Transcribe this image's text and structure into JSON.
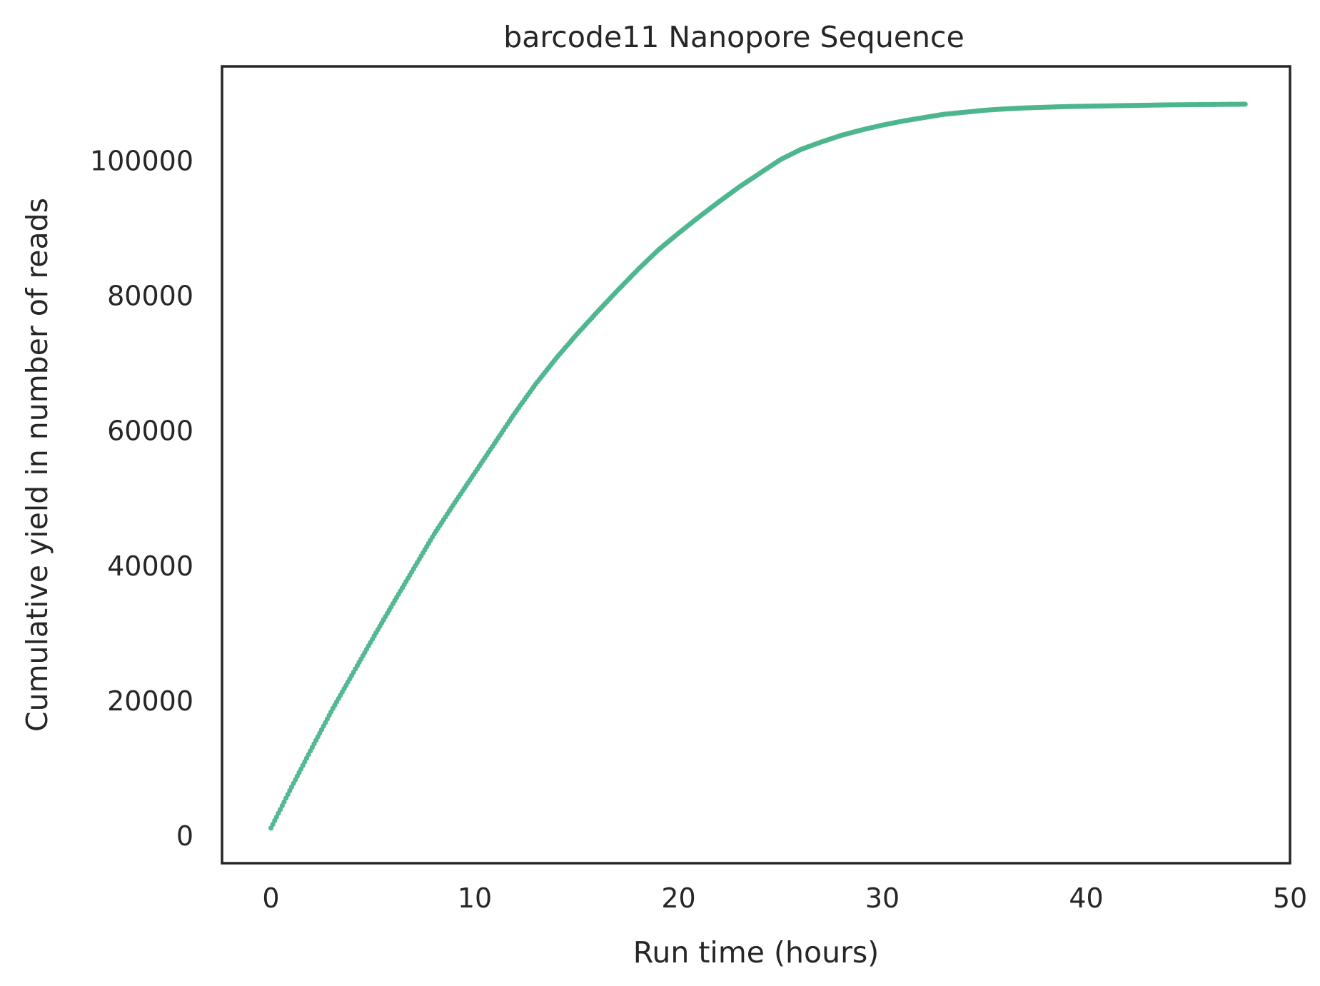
{
  "chart_data": {
    "type": "scatter",
    "title": "barcode11 Nanopore Sequence",
    "xlabel": "Run time (hours)",
    "ylabel": "Cumulative yield in number of reads",
    "xlim": [
      -2.4,
      50
    ],
    "ylim": [
      -4000,
      114000
    ],
    "xticks": [
      0,
      10,
      20,
      30,
      40,
      50
    ],
    "yticks": [
      0,
      20000,
      40000,
      60000,
      80000,
      100000
    ],
    "xtick_labels": [
      "0",
      "10",
      "20",
      "30",
      "40",
      "50"
    ],
    "ytick_labels": [
      "0",
      "20000",
      "40000",
      "60000",
      "80000",
      "100000"
    ],
    "grid": false,
    "legend": "none",
    "series": [
      {
        "color": "#4cb58d",
        "x": [
          0.0,
          0.5,
          1,
          2,
          3,
          4,
          5,
          6,
          7,
          8,
          9,
          10,
          11,
          12,
          13,
          14,
          15,
          16,
          17,
          18,
          19,
          20,
          21,
          22,
          23,
          24,
          25,
          26,
          27,
          28,
          29,
          30,
          31,
          32,
          33,
          34,
          35,
          36,
          37,
          38,
          39,
          40,
          41,
          42,
          43,
          44,
          45,
          46,
          47,
          47.8
        ],
        "y": [
          1200,
          4200,
          7200,
          13000,
          18700,
          24000,
          29300,
          34500,
          39600,
          44700,
          49300,
          53800,
          58300,
          62800,
          67000,
          70800,
          74300,
          77600,
          80800,
          83900,
          86800,
          89300,
          91700,
          94000,
          96200,
          98200,
          100200,
          101700,
          102800,
          103800,
          104600,
          105300,
          105900,
          106400,
          106900,
          107200,
          107500,
          107700,
          107850,
          107950,
          108050,
          108100,
          108150,
          108200,
          108250,
          108300,
          108330,
          108350,
          108380,
          108400
        ]
      }
    ]
  }
}
